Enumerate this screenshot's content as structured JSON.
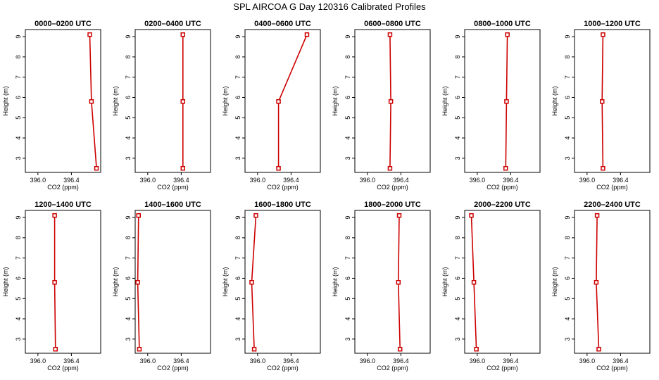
{
  "figure_title": "SPL AIRCOA G  Day 120316  Calibrated Profiles",
  "colors": {
    "line": "#cc0000",
    "marker": "#cc0000",
    "frame": "#000000"
  },
  "chart_data": {
    "type": "line",
    "layout": "2x6 grid of small multiples",
    "shared": {
      "xlabel": "CO2 (ppm)",
      "ylabel": "Height (m)",
      "xlim": [
        395.85,
        396.75
      ],
      "ylim": [
        2.3,
        9.35
      ],
      "xticks": [
        396.0,
        396.4
      ],
      "xtick_labels": [
        "396.0",
        "396.4"
      ],
      "yticks": [
        3,
        4,
        5,
        6,
        7,
        8,
        9
      ],
      "heights": [
        2.5,
        5.8,
        9.1
      ],
      "marker": "open-square"
    },
    "panels": [
      {
        "title": "0000–0200 UTC",
        "co2": [
          396.7,
          396.64,
          396.62
        ]
      },
      {
        "title": "0200–0400 UTC",
        "co2": [
          396.42,
          396.42,
          396.42
        ]
      },
      {
        "title": "0400–0600 UTC",
        "co2": [
          396.25,
          396.25,
          396.59
        ]
      },
      {
        "title": "0600–0800 UTC",
        "co2": [
          396.27,
          396.28,
          396.27
        ]
      },
      {
        "title": "0800–1000 UTC",
        "co2": [
          396.34,
          396.35,
          396.36
        ]
      },
      {
        "title": "1000–1200 UTC",
        "co2": [
          396.19,
          396.18,
          396.19
        ]
      },
      {
        "title": "1200–1400 UTC",
        "co2": [
          396.21,
          396.2,
          396.2
        ]
      },
      {
        "title": "1400–1600 UTC",
        "co2": [
          395.9,
          395.88,
          395.89
        ]
      },
      {
        "title": "1600–1800 UTC",
        "co2": [
          395.96,
          395.93,
          395.98
        ]
      },
      {
        "title": "1800–2000 UTC",
        "co2": [
          396.39,
          396.37,
          396.38
        ]
      },
      {
        "title": "2000–2200 UTC",
        "co2": [
          395.99,
          395.96,
          395.93
        ]
      },
      {
        "title": "2200–2400 UTC",
        "co2": [
          396.14,
          396.11,
          396.12
        ]
      }
    ]
  }
}
